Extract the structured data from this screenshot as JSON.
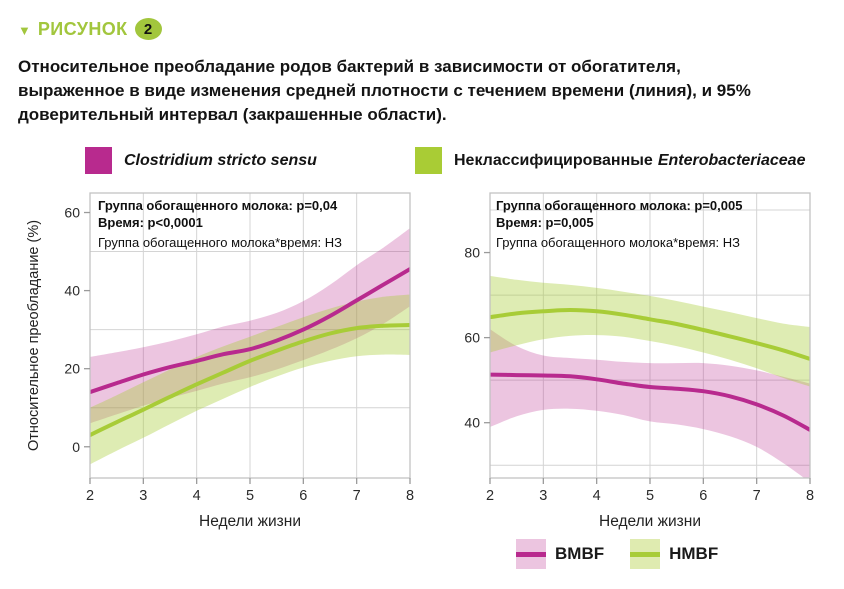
{
  "header": {
    "marker": "▼",
    "label": "РИСУНОК",
    "badge": "2",
    "accent_color": "#a2c63d"
  },
  "title": "Относительное преобладание родов бактерий в зависимости от обогатителя,\nвыраженное в виде изменения средней плотности с течением времени (линия), и 95%\nдоверительный интервал (закрашенные области).",
  "panel_titles": [
    {
      "swatch_color": "#b82a8e",
      "text_italic": "Clostridium stricto sensu",
      "text_regular": ""
    },
    {
      "swatch_color": "#a9cc35",
      "text_regular": "Неклассифицированные",
      "text_italic": "Enterobacteriaceae"
    }
  ],
  "bottom_legend": {
    "items": [
      {
        "label": "BMBF",
        "line_color": "#b82a8e",
        "band_color": "rgba(184,42,142,0.27)"
      },
      {
        "label": "HMBF",
        "line_color": "#a8cc37",
        "band_color": "rgba(170,203,47,0.38)"
      }
    ]
  },
  "chart_data": [
    {
      "type": "line",
      "panel": "Clostridium stricto sensu",
      "annotations": {
        "line1": "Группа обогащенного молока: p=0,04",
        "line2": "Время: p<0,0001",
        "line3": "Группа обогащенного молока*время: НЗ"
      },
      "xlabel": "Недели жизни",
      "ylabel": "Относительное преобладание (%)",
      "xlim": [
        2,
        8
      ],
      "ylim": [
        -8,
        65
      ],
      "x_ticks": [
        2,
        3,
        4,
        5,
        6,
        7,
        8
      ],
      "y_ticks": [
        0,
        20,
        40,
        60
      ],
      "x_gridlines": [
        3,
        4,
        5,
        6,
        7
      ],
      "y_gridlines": [
        10,
        30,
        50
      ],
      "grid": true,
      "x": [
        2,
        2.5,
        3,
        3.5,
        4,
        4.5,
        5,
        5.5,
        6,
        6.5,
        7,
        7.5,
        8
      ],
      "series": [
        {
          "name": "BMBF",
          "color": "#b82a8e",
          "band_opacity": 0.27,
          "values": [
            14,
            16.3,
            18.5,
            20.4,
            22,
            23.7,
            25,
            27.2,
            30,
            33.5,
            37.5,
            41.5,
            45.5
          ],
          "band_upper": [
            23,
            24.2,
            25.5,
            27,
            28.8,
            30.8,
            32.3,
            34.3,
            37.3,
            41.5,
            46.5,
            51,
            56
          ],
          "band_lower": [
            6,
            8.3,
            10.5,
            12.5,
            14.3,
            16.2,
            17.8,
            19.8,
            22.2,
            24.8,
            27.8,
            31.5,
            36
          ]
        },
        {
          "name": "HMBF",
          "color": "#a8cc37",
          "band_opacity": 0.38,
          "values": [
            3,
            6.3,
            9.5,
            12.8,
            16,
            19,
            22,
            24.6,
            27,
            29,
            30.4,
            31,
            31.2
          ],
          "band_upper": [
            10,
            13.2,
            16.5,
            19.8,
            23,
            25.7,
            28.2,
            30.7,
            33.2,
            35.4,
            37.2,
            38.4,
            39
          ],
          "band_lower": [
            -4.5,
            -1,
            2.3,
            5.8,
            9.2,
            12.3,
            15.3,
            18,
            20.3,
            22,
            23.2,
            23.6,
            23.5
          ]
        }
      ]
    },
    {
      "type": "line",
      "panel": "Неклассифицированные Enterobacteriaceae",
      "annotations": {
        "line1": "Группа обогащенного молока: p=0,005",
        "line2": "Время: p=0,005",
        "line3": "Группа обогащенного молока*время: НЗ"
      },
      "xlabel": "Недели жизни",
      "ylabel": "",
      "xlim": [
        2,
        8
      ],
      "ylim": [
        27,
        94
      ],
      "x_ticks": [
        2,
        3,
        4,
        5,
        6,
        7,
        8
      ],
      "y_ticks": [
        40,
        60,
        80
      ],
      "x_gridlines": [
        3,
        4,
        5,
        6,
        7
      ],
      "y_gridlines": [
        30,
        50,
        70,
        90
      ],
      "grid": true,
      "x": [
        2,
        2.5,
        3,
        3.5,
        4,
        4.5,
        5,
        5.5,
        6,
        6.5,
        7,
        7.5,
        8
      ],
      "series": [
        {
          "name": "BMBF",
          "color": "#b82a8e",
          "band_opacity": 0.27,
          "values": [
            51.3,
            51.2,
            51.1,
            50.9,
            50.2,
            49.2,
            48.4,
            48,
            47.4,
            46.2,
            44.3,
            41.7,
            38.3
          ],
          "band_upper": [
            62,
            58,
            55.8,
            55.2,
            54.8,
            54.3,
            54,
            54,
            54,
            53.4,
            52.3,
            50.8,
            49.2
          ],
          "band_lower": [
            39,
            41.5,
            43,
            43.3,
            42.8,
            41.8,
            40.3,
            39.6,
            38.5,
            36.8,
            34.3,
            30.5,
            26
          ]
        },
        {
          "name": "HMBF",
          "color": "#a8cc37",
          "band_opacity": 0.38,
          "values": [
            64.8,
            65.7,
            66.2,
            66.5,
            66.2,
            65.4,
            64.3,
            63.2,
            61.8,
            60.3,
            58.7,
            57,
            55
          ],
          "band_upper": [
            74.5,
            73.6,
            72.9,
            72.4,
            71.7,
            70.8,
            69.8,
            68.6,
            67.3,
            66,
            64.6,
            63.3,
            62.5
          ],
          "band_lower": [
            56.5,
            58.2,
            59.6,
            60.4,
            60.6,
            60.2,
            59.2,
            58,
            56.5,
            54.8,
            52.8,
            50.5,
            48.5
          ]
        }
      ]
    }
  ],
  "style": {
    "grid_color": "#d4d4d4",
    "frame_color": "#c2c2c2",
    "tick_color": "#9a9a9a",
    "tick_text_color": "#2b2b2b",
    "line_width": 4
  }
}
